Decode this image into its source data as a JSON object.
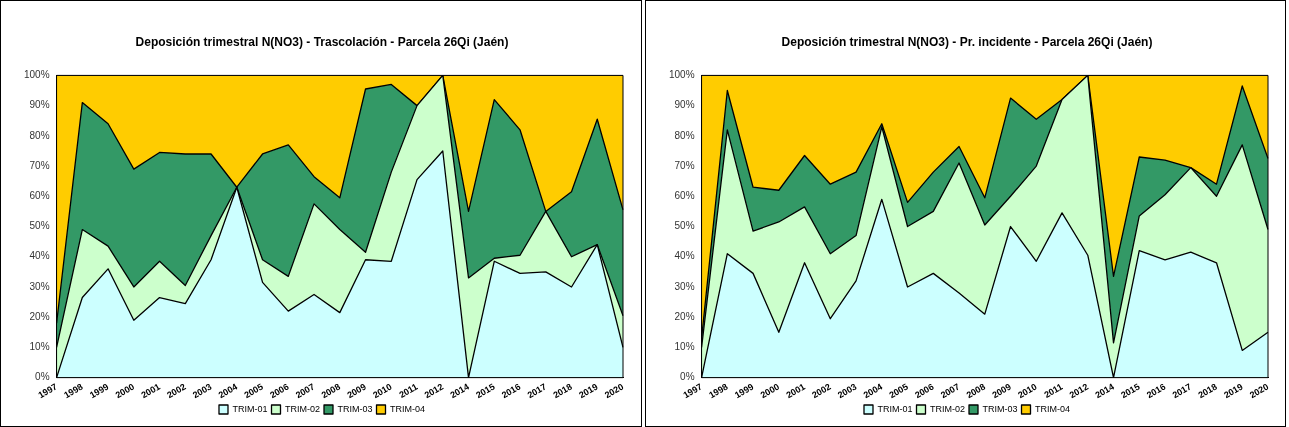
{
  "chart_data": [
    {
      "type": "area",
      "title": "Deposición trimestral N(NO3) - Trascolación - Parcela 26Qi (Jaén)",
      "stacked": true,
      "legend": "bottom",
      "categories": [
        "1997",
        "1998",
        "1999",
        "2000",
        "2001",
        "2002",
        "2003",
        "2004",
        "2005",
        "2006",
        "2007",
        "2008",
        "2009",
        "2010",
        "2011",
        "2012",
        "2014",
        "2015",
        "2016",
        "2017",
        "2018",
        "2019",
        "2020"
      ],
      "ylim": [
        0,
        100
      ],
      "yticks": [
        {
          "value": 0,
          "label": "0%"
        },
        {
          "value": 10,
          "label": "10%"
        },
        {
          "value": 20,
          "label": "20%"
        },
        {
          "value": 30,
          "label": "30%"
        },
        {
          "value": 40,
          "label": "40%"
        },
        {
          "value": 50,
          "label": "50%"
        },
        {
          "value": 60,
          "label": "60%"
        },
        {
          "value": 70,
          "label": "70%"
        },
        {
          "value": 80,
          "label": "80%"
        },
        {
          "value": 90,
          "label": "90%"
        },
        {
          "value": 100,
          "label": "100%"
        }
      ],
      "series": [
        {
          "name": "TRIM-01",
          "color": "#ccffff",
          "values": [
            0,
            26.5,
            36,
            19,
            26.5,
            24.5,
            39,
            63,
            31.5,
            22,
            27.5,
            21.5,
            39,
            38.5,
            65.5,
            75,
            0,
            38.5,
            34.5,
            35,
            30,
            44,
            10
          ]
        },
        {
          "name": "TRIM-02",
          "color": "#ccffcc",
          "values": [
            10,
            22.5,
            7.5,
            11,
            12,
            6,
            8,
            0,
            7.5,
            11.5,
            30,
            27.5,
            2.5,
            29.5,
            24.5,
            25,
            33,
            1,
            6,
            20,
            10,
            0,
            10.5
          ]
        },
        {
          "name": "TRIM-03",
          "color": "#339966",
          "values": [
            8,
            42,
            40.5,
            39,
            36,
            43.5,
            27,
            0,
            35,
            43.5,
            9,
            10.5,
            54,
            29,
            0,
            0,
            22,
            52.5,
            41.5,
            0,
            21.5,
            41.5,
            35
          ]
        },
        {
          "name": "TRIM-04",
          "color": "#ffcc00",
          "values": [
            82,
            9,
            16,
            31,
            25.5,
            26,
            26,
            37,
            26,
            23,
            33.5,
            40.5,
            4.5,
            3,
            10,
            0,
            45,
            8,
            18,
            45,
            38.5,
            14.5,
            44.5
          ]
        }
      ]
    },
    {
      "type": "area",
      "title": "Deposición trimestral N(NO3) - Pr. incidente - Parcela 26Qi (Jaén)",
      "stacked": true,
      "legend": "bottom",
      "categories": [
        "1997",
        "1998",
        "1999",
        "2000",
        "2001",
        "2002",
        "2003",
        "2004",
        "2005",
        "2006",
        "2007",
        "2008",
        "2009",
        "2010",
        "2011",
        "2012",
        "2014",
        "2015",
        "2016",
        "2017",
        "2018",
        "2019",
        "2020"
      ],
      "ylim": [
        0,
        100
      ],
      "yticks": [
        {
          "value": 0,
          "label": "0%"
        },
        {
          "value": 10,
          "label": "10%"
        },
        {
          "value": 20,
          "label": "20%"
        },
        {
          "value": 30,
          "label": "30%"
        },
        {
          "value": 40,
          "label": "40%"
        },
        {
          "value": 50,
          "label": "50%"
        },
        {
          "value": 60,
          "label": "60%"
        },
        {
          "value": 70,
          "label": "70%"
        },
        {
          "value": 80,
          "label": "80%"
        },
        {
          "value": 90,
          "label": "90%"
        },
        {
          "value": 100,
          "label": "100%"
        }
      ],
      "series": [
        {
          "name": "TRIM-01",
          "color": "#ccffff",
          "values": [
            0,
            41,
            34.5,
            15,
            38,
            19.5,
            32,
            59,
            30,
            34.5,
            28,
            21,
            50,
            38.5,
            54.5,
            40.5,
            0,
            42,
            39,
            41.5,
            38,
            9,
            15
          ]
        },
        {
          "name": "TRIM-02",
          "color": "#ccffcc",
          "values": [
            10,
            41,
            14,
            36.5,
            18.5,
            21.5,
            15,
            24,
            20,
            20.5,
            43,
            29.5,
            10,
            31.5,
            37.5,
            59.5,
            11.5,
            11.5,
            21.5,
            28,
            22,
            68,
            34
          ]
        },
        {
          "name": "TRIM-03",
          "color": "#339966",
          "values": [
            3,
            13,
            14.5,
            10.5,
            17,
            23,
            21,
            1,
            8,
            13,
            5.5,
            9,
            32.5,
            15.5,
            0,
            0,
            22,
            19.5,
            11.5,
            0,
            4,
            19.5,
            23.5
          ]
        },
        {
          "name": "TRIM-04",
          "color": "#ffcc00",
          "values": [
            87,
            5,
            37,
            38,
            26.5,
            36,
            32,
            16,
            42,
            32,
            23.5,
            40.5,
            7.5,
            14.5,
            8,
            0,
            66.5,
            27,
            28,
            30.5,
            36,
            3.5,
            27.5
          ]
        }
      ]
    }
  ]
}
